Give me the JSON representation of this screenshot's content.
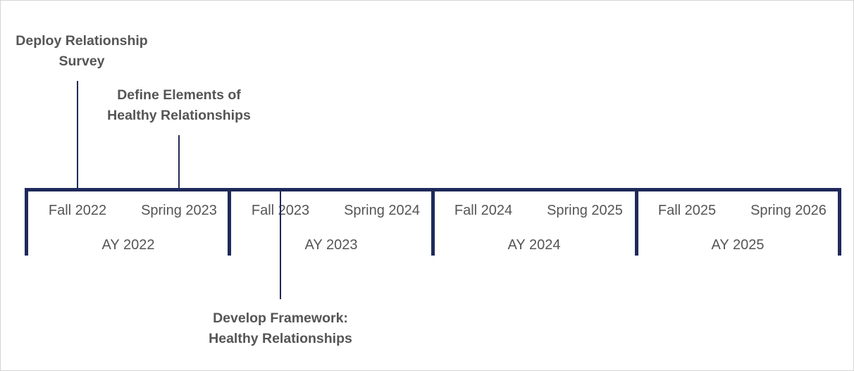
{
  "colors": {
    "axis": "#1f2a5a",
    "text": "#555555",
    "border": "#d4d4d4"
  },
  "timeline": {
    "academic_years": [
      {
        "label": "AY 2022",
        "terms": [
          "Fall 2022",
          "Spring 2023"
        ]
      },
      {
        "label": "AY 2023",
        "terms": [
          "Fall 2023",
          "Spring 2024"
        ]
      },
      {
        "label": "AY 2024",
        "terms": [
          "Fall 2024",
          "Spring 2025"
        ]
      },
      {
        "label": "AY 2025",
        "terms": [
          "Fall 2025",
          "Spring 2026"
        ]
      }
    ]
  },
  "milestones": [
    {
      "lines": [
        "Deploy Relationship",
        "Survey"
      ]
    },
    {
      "lines": [
        "Define Elements of",
        "Healthy Relationships"
      ]
    },
    {
      "lines": [
        "Develop Framework:",
        "Healthy Relationships"
      ]
    }
  ]
}
